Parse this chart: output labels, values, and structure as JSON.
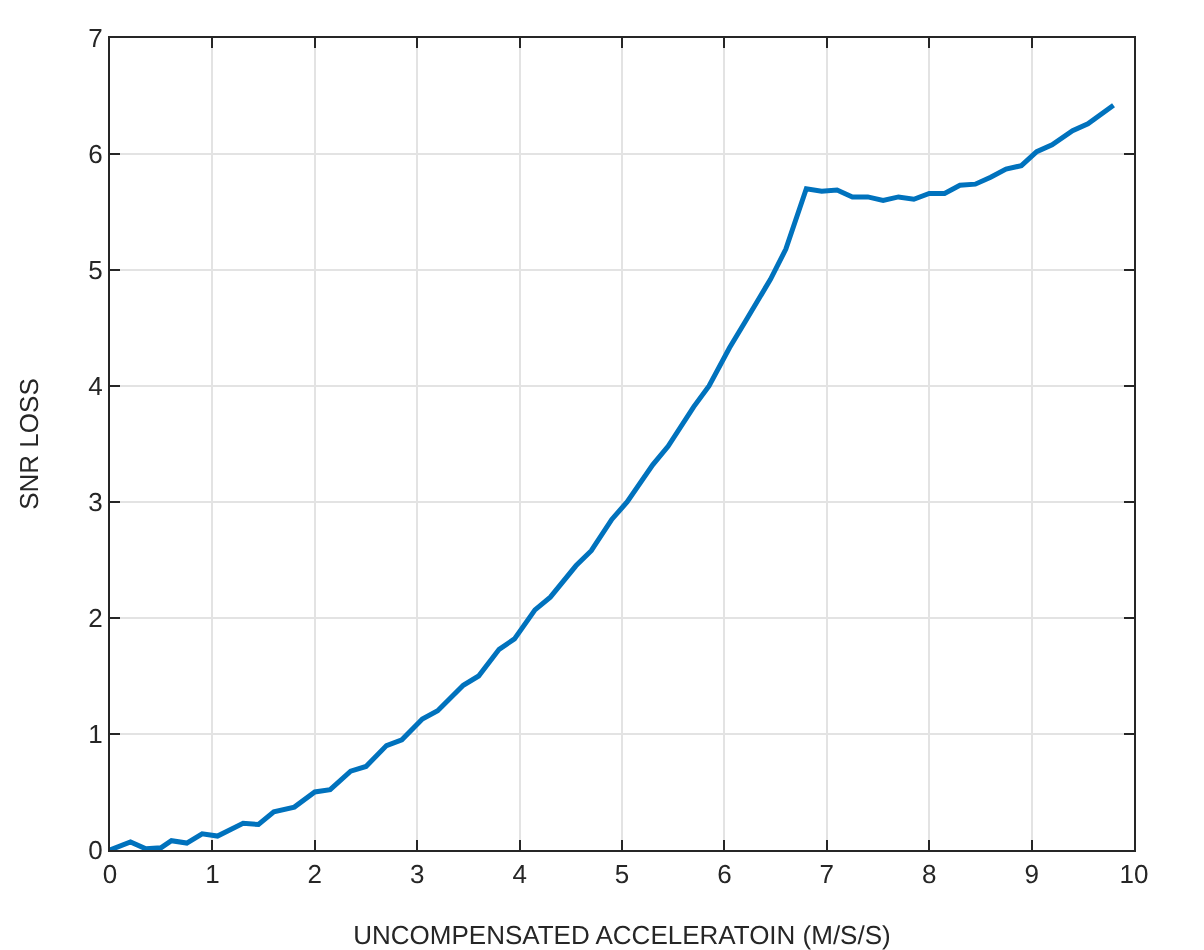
{
  "chart_data": {
    "type": "line",
    "xlabel": "UNCOMPENSATED ACCELERATOIN (M/S/S)",
    "ylabel": "SNR LOSS",
    "x": [
      0,
      0.2,
      0.35,
      0.5,
      0.6,
      0.75,
      0.9,
      1.05,
      1.3,
      1.45,
      1.6,
      1.8,
      2.0,
      2.15,
      2.35,
      2.5,
      2.7,
      2.85,
      3.05,
      3.2,
      3.45,
      3.6,
      3.8,
      3.95,
      4.15,
      4.3,
      4.55,
      4.7,
      4.9,
      5.05,
      5.3,
      5.45,
      5.7,
      5.85,
      6.05,
      6.2,
      6.45,
      6.6,
      6.8,
      6.95,
      7.1,
      7.25,
      7.4,
      7.55,
      7.7,
      7.85,
      8.0,
      8.15,
      8.3,
      8.45,
      8.6,
      8.75,
      8.9,
      9.05,
      9.2,
      9.4,
      9.55,
      9.8
    ],
    "series": [
      {
        "color": "#0072bd",
        "values": [
          0,
          0.07,
          0.01,
          0.02,
          0.08,
          0.06,
          0.14,
          0.12,
          0.23,
          0.22,
          0.33,
          0.37,
          0.5,
          0.52,
          0.68,
          0.72,
          0.9,
          0.95,
          1.13,
          1.2,
          1.42,
          1.5,
          1.73,
          1.82,
          2.07,
          2.18,
          2.45,
          2.58,
          2.85,
          3.0,
          3.32,
          3.48,
          3.82,
          4.0,
          4.33,
          4.55,
          4.92,
          5.18,
          5.7,
          5.68,
          5.69,
          5.63,
          5.63,
          5.6,
          5.63,
          5.61,
          5.66,
          5.66,
          5.73,
          5.74,
          5.8,
          5.87,
          5.9,
          6.02,
          6.08,
          6.2,
          6.26,
          6.42
        ]
      }
    ],
    "xlim": [
      0,
      10
    ],
    "xticks": [
      0,
      1,
      2,
      3,
      4,
      5,
      6,
      7,
      8,
      9,
      10
    ],
    "ylim": [
      0,
      7
    ],
    "yticks": [
      0,
      1,
      2,
      3,
      4,
      5,
      6,
      7
    ],
    "grid": true,
    "marker": "none",
    "line_style": "solid"
  }
}
